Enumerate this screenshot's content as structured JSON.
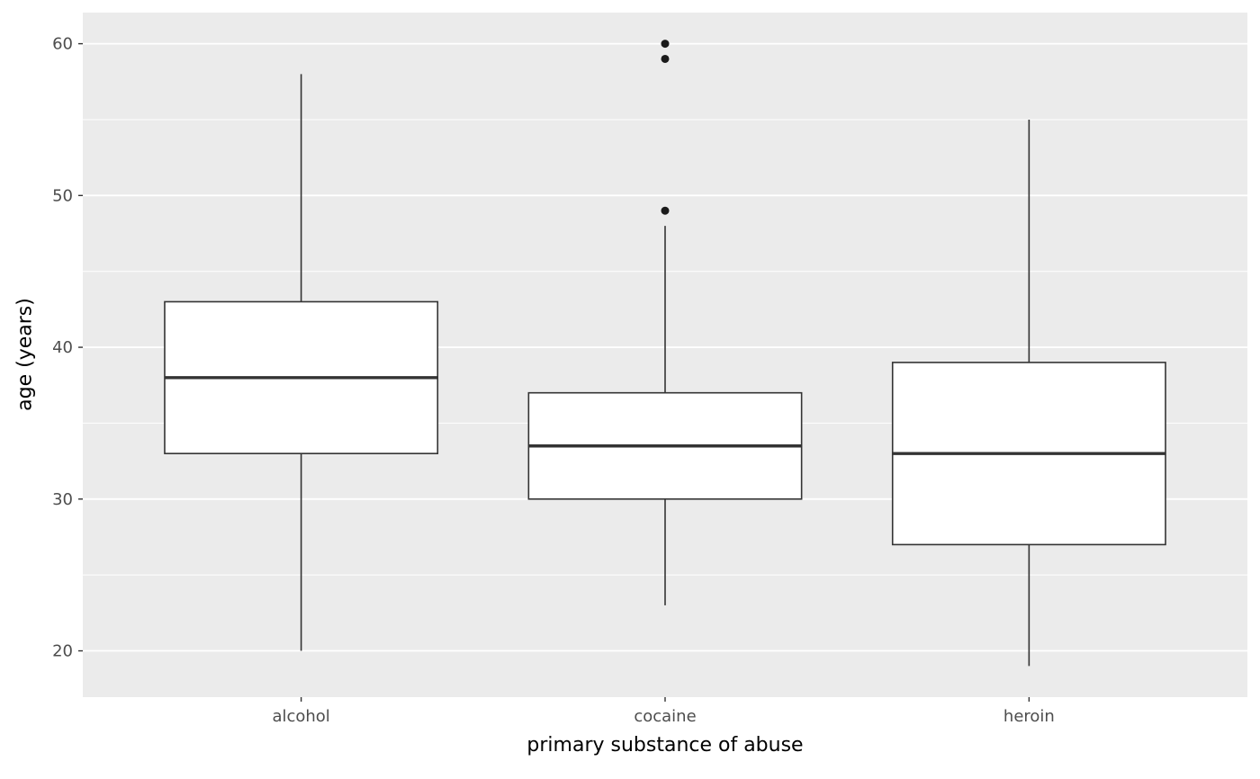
{
  "chart_data": {
    "type": "boxplot",
    "title": "",
    "xlabel": "primary substance of abuse",
    "ylabel": "age (years)",
    "categories": [
      "alcohol",
      "cocaine",
      "heroin"
    ],
    "series": [
      {
        "category": "alcohol",
        "min": 20,
        "q1": 33,
        "median": 38,
        "q3": 43,
        "max": 58,
        "outliers": []
      },
      {
        "category": "cocaine",
        "min": 23,
        "q1": 30,
        "median": 33.5,
        "q3": 37,
        "max": 48,
        "outliers": [
          49,
          59,
          60
        ]
      },
      {
        "category": "heroin",
        "min": 19,
        "q1": 27,
        "median": 33,
        "q3": 39,
        "max": 55,
        "outliers": []
      }
    ],
    "y_ticks": [
      20,
      30,
      40,
      50,
      60
    ],
    "y_minor_ticks": [
      25,
      35,
      45,
      55
    ],
    "ylim": [
      16.95,
      62.05
    ],
    "grid": true,
    "legend": "none",
    "colors": {
      "page_background": "#FFFFFF",
      "panel_background": "#EBEBEB",
      "grid_major": "#FFFFFF",
      "grid_minor": "#FFFFFF",
      "box_fill": "#FFFFFF",
      "box_stroke": "#333333",
      "outlier": "#1A1A1A",
      "axis_text": "#4D4D4D",
      "axis_title": "#000000",
      "tick_mark": "#333333"
    }
  }
}
